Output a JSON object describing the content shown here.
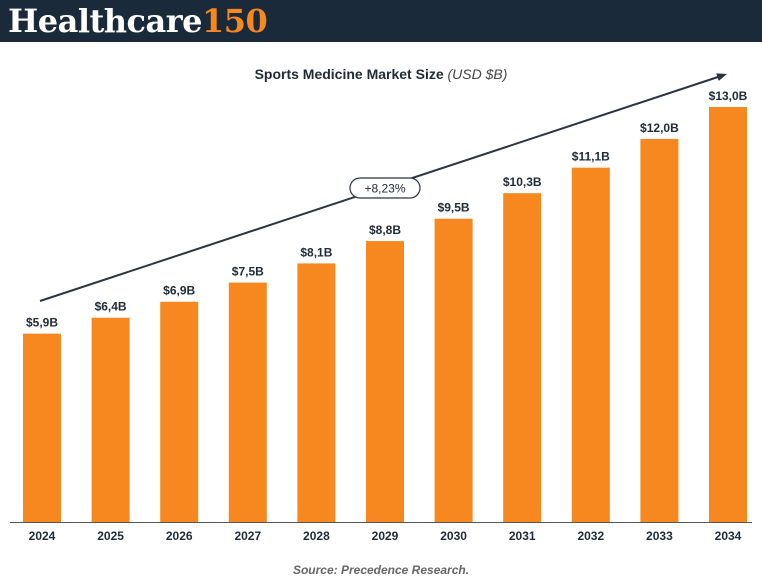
{
  "header": {
    "logo_word": "Healthcare",
    "logo_number": "150"
  },
  "chart_title": {
    "main": "Sports Medicine Market Size",
    "unit": "(USD $B)"
  },
  "source": "Source: Precedence Research.",
  "colors": {
    "bar": "#f7881f",
    "header_bg": "#1b2a3a",
    "text": "#1f2a36"
  },
  "chart_data": {
    "type": "bar",
    "title": "Sports Medicine Market Size (USD $B)",
    "categories": [
      "2024",
      "2025",
      "2026",
      "2027",
      "2028",
      "2029",
      "2030",
      "2031",
      "2032",
      "2033",
      "2034"
    ],
    "values": [
      5.9,
      6.4,
      6.9,
      7.5,
      8.1,
      8.8,
      9.5,
      10.3,
      11.1,
      12.0,
      13.0
    ],
    "value_labels": [
      "$5,9B",
      "$6,4B",
      "$6,9B",
      "$7,5B",
      "$8,1B",
      "$8,8B",
      "$9,5B",
      "$10,3B",
      "$11,1B",
      "$12,0B",
      "$13,0B"
    ],
    "ylim": [
      0,
      13.0
    ],
    "grid": false,
    "legend": "none",
    "annotation": "+8,23%"
  }
}
